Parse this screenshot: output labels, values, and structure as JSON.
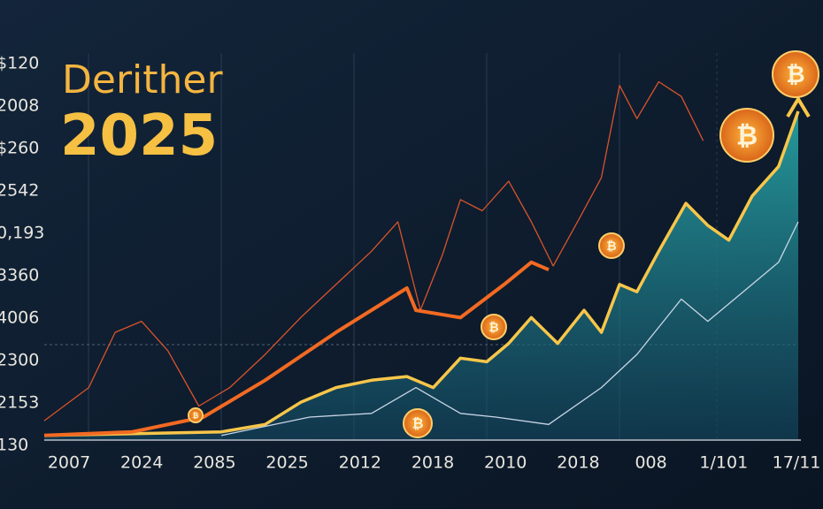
{
  "chart_data": {
    "type": "line",
    "title": "Derither",
    "subtitle": "2025",
    "y_axis_labels": [
      "$120",
      "2008",
      "$260",
      "2542",
      "0,193",
      "3360",
      "4006",
      "2300",
      "2153",
      "130"
    ],
    "x_axis_labels": [
      "2007",
      "2024",
      "2085",
      "2025",
      "2012",
      "2018",
      "2010",
      "2018",
      "008",
      "1/101",
      "17/11"
    ],
    "xlim": [
      0,
      100
    ],
    "ylim": [
      0,
      100
    ],
    "series": [
      {
        "name": "thin-orange",
        "color": "#d9532b",
        "x": [
          0,
          5.9,
          9.4,
          12.9,
          16.4,
          20.5,
          24.6,
          29.3,
          34,
          38.7,
          43.4,
          46.9,
          49.9,
          52.8,
          55.2,
          58.1,
          61.6,
          64.6,
          67.5,
          71,
          73.9,
          76.3,
          78.6,
          81.5,
          84.5,
          87.4
        ],
        "values": [
          5,
          14,
          29,
          32,
          24,
          9,
          14,
          23,
          33,
          42,
          51,
          59,
          35,
          50,
          65,
          62,
          70,
          59,
          47,
          60,
          71,
          96,
          87,
          97,
          93,
          81
        ]
      },
      {
        "name": "thick-orange",
        "color": "#f26a22",
        "x": [
          0,
          11.7,
          21.1,
          29.3,
          38.7,
          48.1,
          49.3,
          55.2,
          61,
          64.6,
          66.9
        ],
        "values": [
          1,
          2,
          6,
          16,
          29,
          41,
          35,
          33,
          42,
          48,
          46
        ]
      },
      {
        "name": "yellow",
        "color": "#f7c64a",
        "area": true,
        "x": [
          0,
          23.5,
          29.3,
          34,
          38.7,
          43.4,
          48.1,
          51.6,
          55.2,
          58.7,
          61.6,
          64.6,
          68.1,
          71.6,
          73.9,
          76.3,
          78.6,
          81.5,
          85.1,
          88,
          90.8,
          93.9,
          97.4,
          100
        ],
        "values": [
          1,
          2,
          4,
          10,
          14,
          16,
          17,
          14,
          22,
          21,
          26,
          33,
          26,
          35,
          29,
          42,
          40,
          51,
          64,
          58,
          54,
          66,
          74,
          89
        ]
      },
      {
        "name": "white",
        "color": "#c9d6e6",
        "x": [
          23.5,
          35.2,
          43.4,
          49.3,
          55.2,
          59.9,
          66.9,
          73.9,
          78.6,
          84.5,
          88,
          92.7,
          97.4,
          100
        ],
        "values": [
          1,
          6,
          7,
          14,
          7,
          6,
          4,
          14,
          23,
          38,
          32,
          40,
          48,
          59
        ]
      }
    ]
  }
}
